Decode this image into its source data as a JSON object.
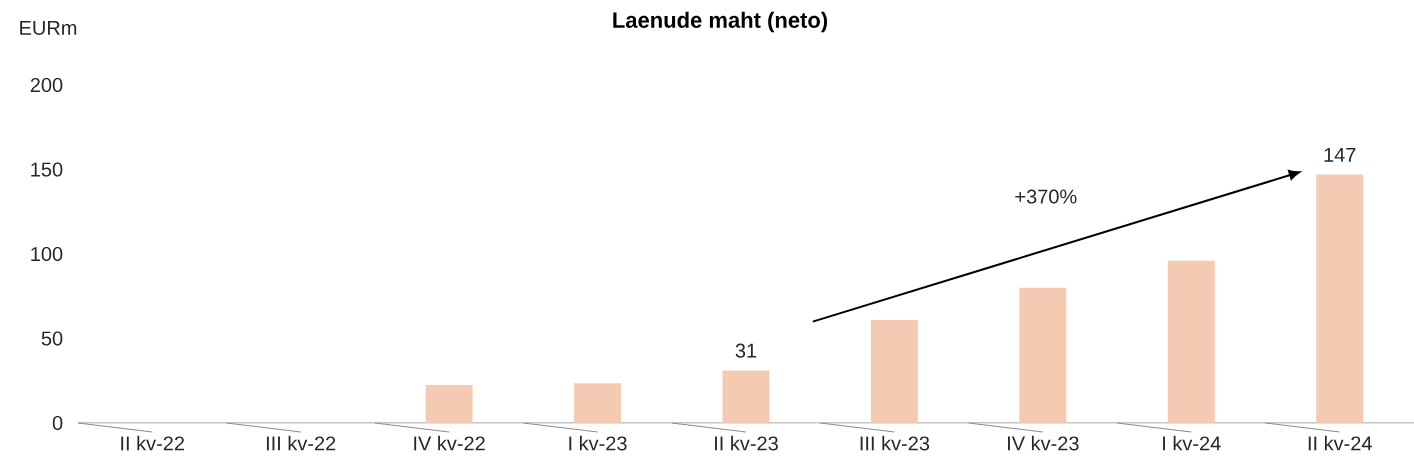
{
  "chart_data": {
    "type": "bar",
    "title": "Laenude maht (neto)",
    "ylabel": "EURm",
    "categories": [
      "II kv-22",
      "III kv-22",
      "IV kv-22",
      "I kv-23",
      "II kv-23",
      "III kv-23",
      "IV kv-23",
      "I kv-24",
      "II kv-24"
    ],
    "values": [
      null,
      null,
      22.5,
      23.5,
      31,
      61,
      80,
      96,
      147
    ],
    "value_labels": [
      null,
      null,
      null,
      null,
      "31",
      null,
      null,
      null,
      "147"
    ],
    "color": "#f4cbb2",
    "ylim": [
      0,
      200
    ],
    "yticks": [
      0,
      50,
      100,
      150,
      200
    ],
    "annotations": [
      "+370%"
    ],
    "grid": false
  }
}
